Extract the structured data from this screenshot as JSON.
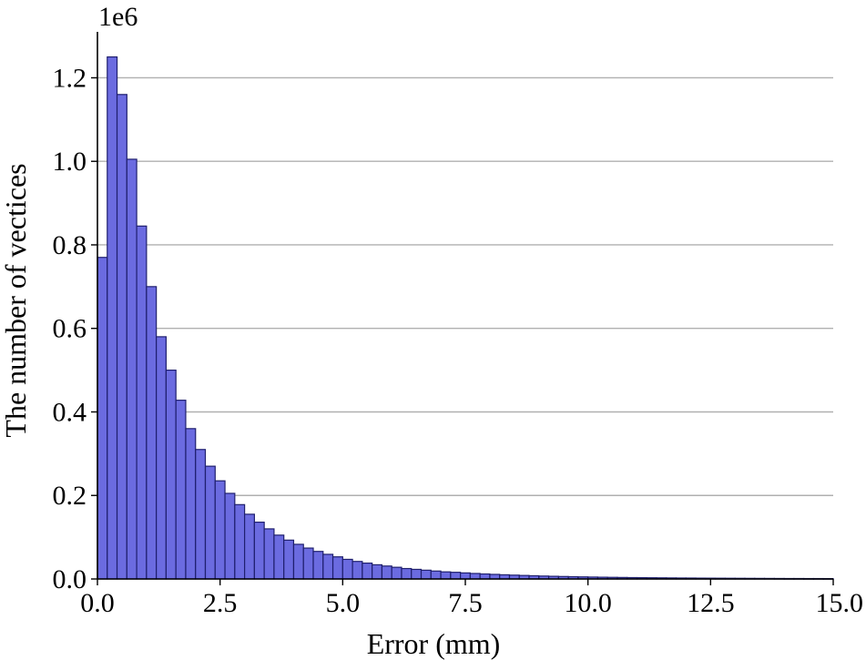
{
  "chart_data": {
    "type": "bar",
    "histogram": true,
    "xlabel": "Error (mm)",
    "ylabel": "The number of vectices",
    "y_multiplier_label": "1e6",
    "xlim": [
      0,
      15
    ],
    "ylim": [
      0,
      1.31
    ],
    "bin_width": 0.2,
    "x_ticks": [
      0,
      2.5,
      5,
      7.5,
      10,
      12.5,
      15
    ],
    "x_tick_labels": [
      "0.0",
      "2.5",
      "5.0",
      "7.5",
      "10.0",
      "12.5",
      "15.0"
    ],
    "y_ticks": [
      0,
      0.2,
      0.4,
      0.6,
      0.8,
      1.0,
      1.2
    ],
    "y_tick_labels": [
      "0.0",
      "0.2",
      "0.4",
      "0.6",
      "0.8",
      "1.0",
      "1.2"
    ],
    "grid": "horizontal",
    "bar_fill": "#6b6be0",
    "bar_edge": "#1f1f6e",
    "values": [
      0.77,
      1.25,
      1.16,
      1.005,
      0.845,
      0.7,
      0.58,
      0.5,
      0.428,
      0.36,
      0.31,
      0.27,
      0.235,
      0.205,
      0.178,
      0.155,
      0.136,
      0.12,
      0.105,
      0.093,
      0.083,
      0.074,
      0.066,
      0.059,
      0.053,
      0.047,
      0.042,
      0.038,
      0.034,
      0.031,
      0.028,
      0.025,
      0.023,
      0.021,
      0.019,
      0.017,
      0.016,
      0.0145,
      0.0132,
      0.012,
      0.011,
      0.01,
      0.0092,
      0.0084,
      0.0077,
      0.007,
      0.0064,
      0.0059,
      0.0054,
      0.005,
      0.0046,
      0.0042,
      0.0039,
      0.0036,
      0.0033,
      0.0031,
      0.0029,
      0.0027,
      0.0025,
      0.0023,
      0.0022,
      0.002,
      0.0019,
      0.0018,
      0.0017,
      0.0016,
      0.0015,
      0.0014,
      0.0013,
      0.0012,
      0.0011,
      0.0011,
      0.001,
      0.001,
      0.0009
    ]
  }
}
